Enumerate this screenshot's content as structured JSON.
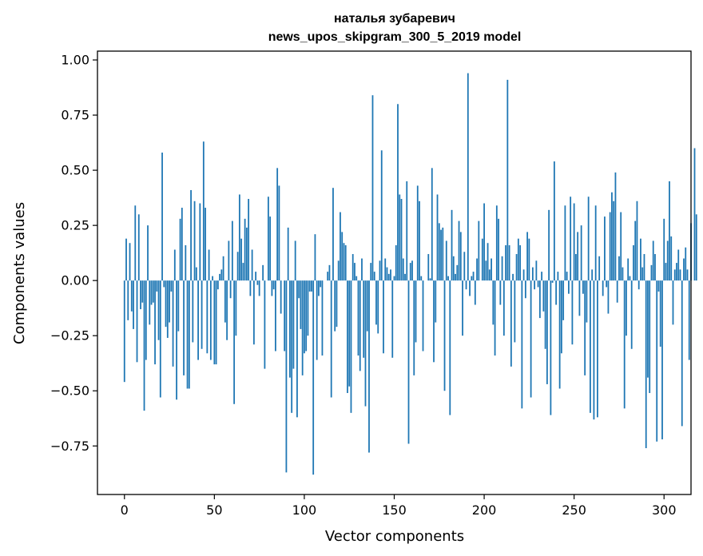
{
  "chart_data": {
    "type": "bar",
    "title": "наталья зубаревич",
    "subtitle": "news_upos_skipgram_300_5_2019 model",
    "xlabel": "Vector components",
    "ylabel": "Components values",
    "xlim": [
      -15,
      315
    ],
    "ylim": [
      -0.97,
      1.04
    ],
    "xticks": [
      0,
      50,
      100,
      150,
      200,
      250,
      300
    ],
    "xtick_labels": [
      "0",
      "50",
      "100",
      "150",
      "200",
      "250",
      "300"
    ],
    "yticks": [
      -0.75,
      -0.5,
      -0.25,
      0.0,
      0.25,
      0.5,
      0.75,
      1.0
    ],
    "ytick_labels": [
      "−0.75",
      "−0.50",
      "−0.25",
      "0.00",
      "0.25",
      "0.50",
      "0.75",
      "1.00"
    ],
    "grid": false,
    "bar_color": "#1f77b4",
    "values": [
      -0.46,
      0.19,
      -0.18,
      0.17,
      -0.14,
      -0.22,
      0.34,
      -0.37,
      0.3,
      -0.13,
      -0.1,
      -0.59,
      -0.36,
      0.25,
      -0.2,
      -0.11,
      -0.1,
      -0.38,
      -0.05,
      -0.27,
      -0.53,
      0.58,
      -0.03,
      -0.21,
      -0.26,
      -0.19,
      -0.05,
      -0.39,
      0.14,
      -0.54,
      -0.23,
      0.28,
      0.33,
      -0.43,
      0.16,
      -0.49,
      -0.49,
      0.41,
      -0.28,
      0.36,
      0.06,
      -0.36,
      0.35,
      -0.31,
      0.63,
      0.33,
      -0.33,
      0.14,
      -0.36,
      0.02,
      -0.38,
      -0.38,
      -0.04,
      0.03,
      0.05,
      0.11,
      -0.19,
      -0.27,
      0.18,
      -0.08,
      0.27,
      -0.56,
      -0.25,
      0.13,
      0.39,
      0.19,
      0.08,
      0.28,
      0.24,
      0.37,
      -0.07,
      0.14,
      -0.29,
      0.04,
      -0.02,
      -0.07,
      0.0,
      0.07,
      -0.4,
      0.0,
      0.38,
      0.29,
      -0.07,
      -0.04,
      -0.32,
      0.51,
      0.43,
      -0.15,
      0.0,
      -0.32,
      -0.87,
      0.24,
      -0.44,
      -0.6,
      -0.4,
      0.18,
      -0.62,
      -0.08,
      -0.22,
      -0.43,
      -0.33,
      -0.32,
      -0.25,
      -0.05,
      -0.05,
      -0.88,
      0.21,
      -0.36,
      -0.07,
      -0.03,
      -0.34,
      0.0,
      0.0,
      0.04,
      0.07,
      -0.53,
      0.42,
      -0.23,
      -0.21,
      0.09,
      0.31,
      0.22,
      0.17,
      0.16,
      -0.51,
      -0.48,
      -0.6,
      0.12,
      0.08,
      0.02,
      -0.34,
      -0.41,
      0.1,
      -0.35,
      -0.57,
      -0.23,
      -0.78,
      0.08,
      0.84,
      0.04,
      -0.2,
      -0.24,
      0.09,
      0.59,
      -0.33,
      0.1,
      0.06,
      0.03,
      0.05,
      -0.35,
      0.02,
      0.16,
      0.8,
      0.39,
      0.37,
      0.1,
      0.03,
      0.45,
      -0.74,
      0.08,
      0.09,
      -0.43,
      -0.28,
      0.43,
      0.36,
      0.02,
      -0.32,
      0.0,
      0.0,
      0.12,
      0.01,
      0.51,
      -0.37,
      -0.19,
      0.39,
      0.26,
      0.23,
      0.24,
      -0.5,
      0.18,
      0.02,
      -0.61,
      0.32,
      0.11,
      0.03,
      0.07,
      0.27,
      0.22,
      -0.25,
      0.13,
      -0.04,
      0.94,
      -0.07,
      0.02,
      0.04,
      -0.11,
      0.1,
      0.27,
      0.0,
      0.19,
      0.35,
      0.09,
      0.17,
      0.05,
      0.1,
      -0.2,
      -0.34,
      0.34,
      0.28,
      -0.11,
      0.11,
      -0.25,
      0.16,
      0.91,
      0.16,
      -0.39,
      0.03,
      -0.28,
      0.12,
      0.19,
      0.16,
      -0.58,
      0.05,
      -0.08,
      0.22,
      0.19,
      -0.53,
      0.06,
      -0.04,
      0.09,
      -0.03,
      -0.17,
      0.04,
      -0.14,
      -0.31,
      -0.47,
      0.32,
      -0.61,
      -0.01,
      0.54,
      -0.11,
      0.04,
      -0.49,
      -0.33,
      -0.18,
      0.34,
      0.04,
      -0.06,
      0.38,
      -0.29,
      0.35,
      0.12,
      0.22,
      -0.16,
      0.25,
      -0.06,
      -0.43,
      -0.19,
      0.38,
      -0.6,
      0.05,
      -0.63,
      0.34,
      -0.62,
      0.11,
      0.0,
      -0.07,
      0.29,
      -0.03,
      -0.15,
      0.31,
      0.4,
      0.36,
      0.49,
      -0.1,
      0.11,
      0.31,
      0.06,
      -0.58,
      -0.25,
      0.1,
      0.02,
      -0.31,
      0.16,
      0.27,
      0.36,
      -0.04,
      0.19,
      0.06,
      0.12,
      -0.76,
      -0.44,
      -0.51,
      0.07,
      0.18,
      0.12,
      -0.73,
      -0.05,
      -0.3,
      -0.72,
      0.28,
      0.08,
      0.18,
      0.45,
      0.2,
      -0.2,
      0.05,
      0.08,
      0.14,
      0.05,
      -0.66,
      0.1,
      0.15,
      0.05,
      -0.36,
      0.26,
      0.0,
      0.6,
      0.3
    ]
  }
}
